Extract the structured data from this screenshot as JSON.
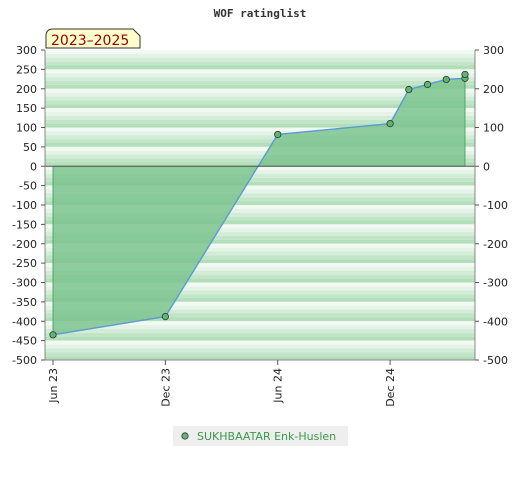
{
  "chart_data": {
    "type": "area",
    "title": "WOF ratinglist",
    "period_badge": "2023–2025",
    "xlabel": "",
    "ylabel": "",
    "ylim": [
      -500,
      300
    ],
    "y_ticks": [
      300,
      250,
      200,
      150,
      100,
      50,
      0,
      -50,
      -100,
      -150,
      -200,
      -250,
      -300,
      -350,
      -400,
      -450,
      -500
    ],
    "y_ticks_right": [
      300,
      200,
      100,
      0,
      -100,
      -200,
      -300,
      -400,
      -500
    ],
    "x_ticks": [
      {
        "label": "Jun 23",
        "x": "2023-06"
      },
      {
        "label": "Dec 23",
        "x": "2023-12"
      },
      {
        "label": "Jun 24",
        "x": "2024-06"
      },
      {
        "label": "Dec 24",
        "x": "2024-12"
      }
    ],
    "xlim": [
      "2023-06",
      "2025-04"
    ],
    "series": [
      {
        "name": "SUKHBAATAR Enk-Huslen",
        "points": [
          {
            "x": "2023-06",
            "y": -435
          },
          {
            "x": "2023-12",
            "y": -388
          },
          {
            "x": "2024-06",
            "y": 82,
            "marker": true
          },
          {
            "x": "2024-12",
            "y": 110,
            "marker": true
          },
          {
            "x": "2025-01",
            "y": 198,
            "marker": true
          },
          {
            "x": "2025-02",
            "y": 211,
            "marker": true
          },
          {
            "x": "2025-03",
            "y": 224,
            "marker": true
          },
          {
            "x": "2025-04",
            "y": 227,
            "marker": true
          },
          {
            "x": "2025-04",
            "y": 237,
            "marker": true
          }
        ]
      }
    ],
    "grid": true,
    "legend_position": "bottom-center",
    "colors": {
      "fill": "#7cc48f",
      "line": "#5b9bd5",
      "marker": "#5cb870",
      "legend_text": "#3a9a4a",
      "badge_bg": "#ffffcc",
      "badge_text": "#990000"
    }
  }
}
